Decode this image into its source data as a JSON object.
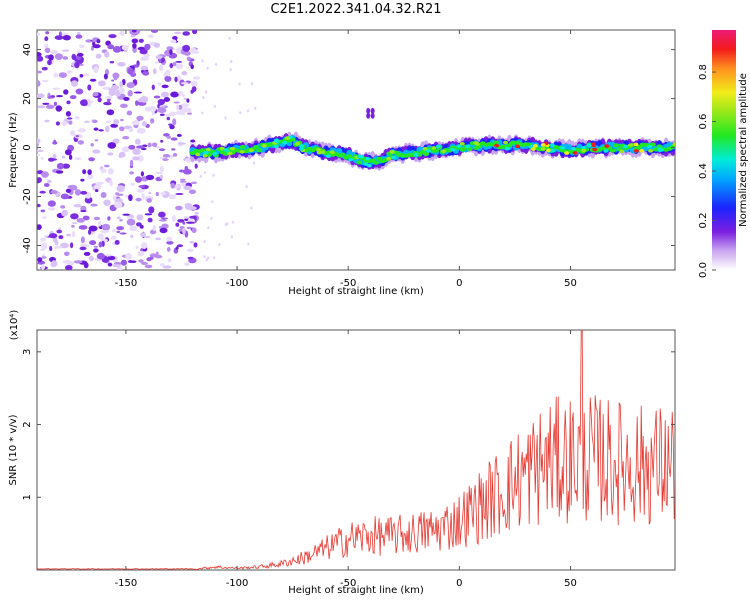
{
  "title": "C2E1.2022.341.04.32.R21",
  "chart_data": [
    {
      "type": "heatmap",
      "xlabel": "Height of straight line (km)",
      "ylabel": "Frequency (Hz)",
      "xlim": [
        -190,
        97
      ],
      "ylim": [
        -50,
        48
      ],
      "xticks": [
        -150,
        -100,
        -50,
        0,
        50
      ],
      "yticks": [
        -40,
        -20,
        0,
        20,
        40
      ],
      "colorbar": {
        "label": "Normalized spectral amplitude",
        "range": [
          0,
          0.97
        ],
        "ticks": [
          0.0,
          0.2,
          0.4,
          0.6,
          0.8
        ],
        "colormap": "rainbow (white-violet-blue-cyan-green-yellow-red-magenta)"
      },
      "signal_track": {
        "x": [
          -120,
          -110,
          -100,
          -90,
          -80,
          -75,
          -70,
          -60,
          -50,
          -45,
          -40,
          -35,
          -30,
          -20,
          -10,
          0,
          10,
          20,
          30,
          40,
          50,
          60,
          70,
          80,
          90,
          97
        ],
        "frequency": [
          -2,
          -2,
          -1,
          0,
          2,
          3,
          0,
          -2,
          -3,
          -5,
          -6,
          -5,
          -3,
          -2,
          -1,
          0,
          1,
          1,
          1,
          0,
          -1,
          0,
          0,
          0,
          0,
          0
        ]
      },
      "noise_region_x": [
        -190,
        -118
      ]
    },
    {
      "type": "line",
      "xlabel": "Height of straight line (km)",
      "ylabel": "SNR (10 * v/v)",
      "y_multiplier": "(x10⁴)",
      "xlim": [
        -190,
        97
      ],
      "ylim": [
        0,
        3.3
      ],
      "xticks": [
        -150,
        -100,
        -50,
        0,
        50
      ],
      "yticks": [
        1,
        2,
        3
      ],
      "series": [
        {
          "color": "#e8372f",
          "envelope_x": [
            -190,
            -120,
            -110,
            -100,
            -90,
            -80,
            -70,
            -60,
            -50,
            -40,
            -30,
            -20,
            -10,
            0,
            10,
            20,
            30,
            40,
            50,
            55,
            60,
            70,
            80,
            90,
            97
          ],
          "envelope_y": [
            0.01,
            0.01,
            0.05,
            0.03,
            0.05,
            0.1,
            0.2,
            0.35,
            0.5,
            0.55,
            0.55,
            0.6,
            0.65,
            0.8,
            1.05,
            1.3,
            1.55,
            1.75,
            1.8,
            1.85,
            1.8,
            1.75,
            1.7,
            1.7,
            1.7
          ],
          "peak": {
            "x": 55,
            "y": 3.3
          }
        }
      ]
    }
  ]
}
